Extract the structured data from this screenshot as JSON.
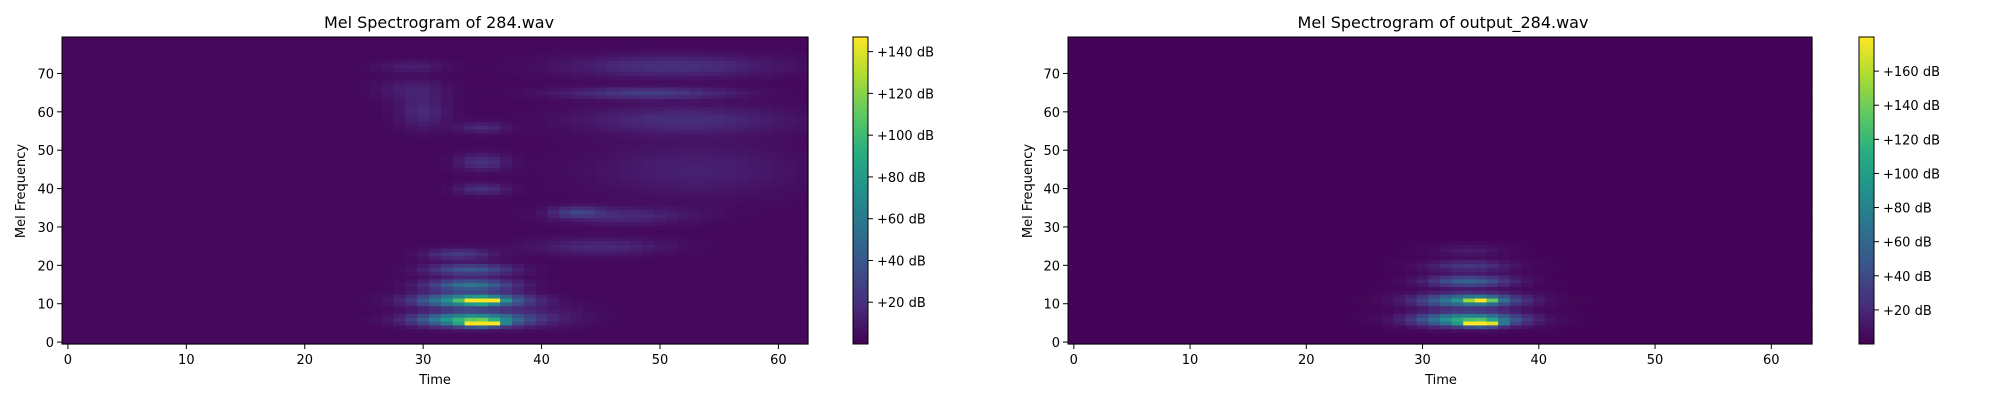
{
  "chart_data": [
    {
      "type": "heatmap",
      "title": "Mel Spectrogram of 284.wav",
      "xlabel": "Time",
      "ylabel": "Mel Frequency",
      "xlim": [
        -0.5,
        62.5
      ],
      "ylim": [
        -0.5,
        79.5
      ],
      "xticks": [
        0,
        10,
        20,
        30,
        40,
        50,
        60
      ],
      "yticks": [
        0,
        10,
        20,
        30,
        40,
        50,
        60,
        70
      ],
      "colorbar": {
        "ticks": [
          20,
          40,
          60,
          80,
          100,
          120,
          140
        ],
        "tick_labels": [
          "+20 dB",
          "+40 dB",
          "+60 dB",
          "+80 dB",
          "+100 dB",
          "+120 dB",
          "+140 dB"
        ],
        "range": [
          0,
          147
        ],
        "colormap": "viridis"
      },
      "background_level": 3,
      "blobs": [
        {
          "t": 35,
          "f": 5,
          "dt": 1.0,
          "df": 0.5,
          "v": 145
        },
        {
          "t": 34,
          "f": 6,
          "dt": 3.0,
          "df": 1.2,
          "v": 95
        },
        {
          "t": 35,
          "f": 11,
          "dt": 1.0,
          "df": 0.5,
          "v": 125
        },
        {
          "t": 34,
          "f": 11,
          "dt": 3.0,
          "df": 1.2,
          "v": 90
        },
        {
          "t": 34,
          "f": 15,
          "dt": 2.5,
          "df": 1.0,
          "v": 55
        },
        {
          "t": 34,
          "f": 19,
          "dt": 2.5,
          "df": 1.0,
          "v": 38
        },
        {
          "t": 33,
          "f": 23,
          "dt": 2.0,
          "df": 1.0,
          "v": 22
        },
        {
          "t": 35,
          "f": 40,
          "dt": 1.5,
          "df": 1.0,
          "v": 18
        },
        {
          "t": 35,
          "f": 47,
          "dt": 1.5,
          "df": 1.5,
          "v": 18
        },
        {
          "t": 35,
          "f": 56,
          "dt": 1.5,
          "df": 1.0,
          "v": 14
        },
        {
          "t": 30,
          "f": 60,
          "dt": 1.5,
          "df": 3.0,
          "v": 14
        },
        {
          "t": 29,
          "f": 66,
          "dt": 2.0,
          "df": 2.0,
          "v": 10
        },
        {
          "t": 29,
          "f": 72,
          "dt": 2.0,
          "df": 1.0,
          "v": 10
        },
        {
          "t": 49,
          "f": 65,
          "dt": 5.0,
          "df": 1.0,
          "v": 24
        },
        {
          "t": 51,
          "f": 72,
          "dt": 6.0,
          "df": 2.0,
          "v": 18
        },
        {
          "t": 52,
          "f": 58,
          "dt": 6.0,
          "df": 2.5,
          "v": 16
        },
        {
          "t": 43,
          "f": 34,
          "dt": 1.5,
          "df": 1.0,
          "v": 22
        },
        {
          "t": 47,
          "f": 33,
          "dt": 4.0,
          "df": 1.5,
          "v": 14
        },
        {
          "t": 45,
          "f": 25,
          "dt": 4.0,
          "df": 1.5,
          "v": 14
        },
        {
          "t": 53,
          "f": 45,
          "dt": 6.0,
          "df": 5.0,
          "v": 10
        },
        {
          "t": 40,
          "f": 7,
          "dt": 3.0,
          "df": 2.0,
          "v": 8
        }
      ]
    },
    {
      "type": "heatmap",
      "title": "Mel Spectrogram of output_284.wav",
      "xlabel": "Time",
      "ylabel": "Mel Frequency",
      "xlim": [
        -0.5,
        63.5
      ],
      "ylim": [
        -0.5,
        79.5
      ],
      "xticks": [
        0,
        10,
        20,
        30,
        40,
        50,
        60
      ],
      "yticks": [
        0,
        10,
        20,
        30,
        40,
        50,
        60,
        70
      ],
      "colorbar": {
        "ticks": [
          20,
          40,
          60,
          80,
          100,
          120,
          140,
          160
        ],
        "tick_labels": [
          "+20 dB",
          "+40 dB",
          "+60 dB",
          "+80 dB",
          "+100 dB",
          "+120 dB",
          "+140 dB",
          "+160 dB"
        ],
        "range": [
          0,
          180
        ],
        "colormap": "viridis"
      },
      "background_level": 2,
      "blobs": [
        {
          "t": 35,
          "f": 5,
          "dt": 1.0,
          "df": 0.5,
          "v": 178
        },
        {
          "t": 34,
          "f": 6,
          "dt": 3.0,
          "df": 1.2,
          "v": 110
        },
        {
          "t": 35,
          "f": 11,
          "dt": 1.0,
          "df": 0.5,
          "v": 110
        },
        {
          "t": 34,
          "f": 11,
          "dt": 3.0,
          "df": 1.2,
          "v": 85
        },
        {
          "t": 34,
          "f": 16,
          "dt": 2.5,
          "df": 1.0,
          "v": 55
        },
        {
          "t": 34,
          "f": 20,
          "dt": 2.5,
          "df": 1.0,
          "v": 28
        },
        {
          "t": 34,
          "f": 24,
          "dt": 2.0,
          "df": 1.0,
          "v": 12
        }
      ]
    }
  ]
}
